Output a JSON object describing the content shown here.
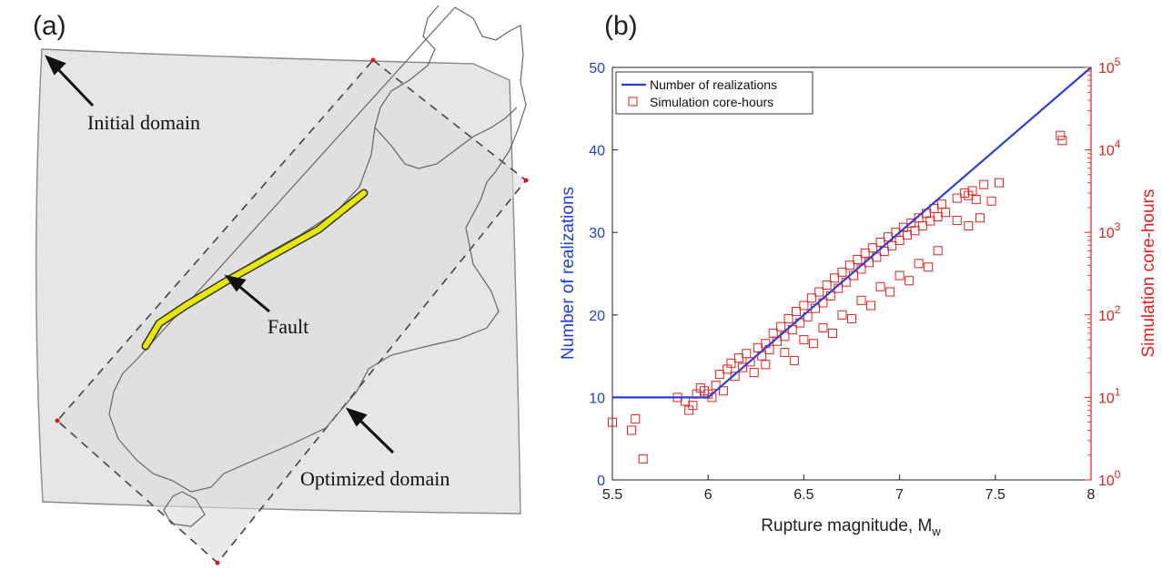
{
  "panel_a": {
    "label": "(a)",
    "annotations": {
      "initial_domain": "Initial domain",
      "fault": "Fault",
      "optimized_domain": "Optimized domain"
    },
    "colors": {
      "domain_fill": "#e6e6e6",
      "fault": "#e8e800",
      "coast": "#666666"
    }
  },
  "panel_b": {
    "label": "(b)",
    "colors": {
      "left_axis": "#1f3fe0",
      "right_axis": "#e8201c",
      "line": "#2b3fd8",
      "markers": "#e8201c"
    }
  },
  "chart_data": {
    "type": "line",
    "xlabel": "Rupture magnitude, M",
    "xlabel_subscript": "w",
    "ylabel": "Number of realizations",
    "ylabel_right": "Simulation core-hours",
    "xlim": [
      5.5,
      8
    ],
    "ylim": [
      0,
      50
    ],
    "ylim_right": [
      1,
      100000
    ],
    "y_right_scale": "log",
    "x_ticks": [
      "5.5",
      "6",
      "6.5",
      "7",
      "7.5",
      "8"
    ],
    "y_ticks": [
      "0",
      "10",
      "20",
      "30",
      "40",
      "50"
    ],
    "y_right_ticks": [
      {
        "base": "10",
        "exp": "0"
      },
      {
        "base": "10",
        "exp": "1"
      },
      {
        "base": "10",
        "exp": "2"
      },
      {
        "base": "10",
        "exp": "3"
      },
      {
        "base": "10",
        "exp": "4"
      },
      {
        "base": "10",
        "exp": "5"
      }
    ],
    "legend_position": "top-left",
    "series": [
      {
        "name": "Number of realizations",
        "type": "line",
        "x": [
          5.5,
          6.0,
          8.0
        ],
        "y": [
          10,
          10,
          50
        ]
      },
      {
        "name": "Simulation core-hours",
        "type": "scatter",
        "axis": "right",
        "points": [
          [
            5.5,
            5
          ],
          [
            5.6,
            4
          ],
          [
            5.62,
            5.5
          ],
          [
            5.66,
            1.8
          ],
          [
            5.84,
            10
          ],
          [
            5.88,
            9
          ],
          [
            5.9,
            7
          ],
          [
            5.92,
            8
          ],
          [
            5.94,
            11
          ],
          [
            5.96,
            13
          ],
          [
            5.98,
            12
          ],
          [
            6.0,
            11
          ],
          [
            6.02,
            10
          ],
          [
            6.04,
            14
          ],
          [
            6.06,
            19
          ],
          [
            6.08,
            12
          ],
          [
            6.1,
            22
          ],
          [
            6.12,
            26
          ],
          [
            6.14,
            18
          ],
          [
            6.16,
            30
          ],
          [
            6.18,
            23
          ],
          [
            6.2,
            34
          ],
          [
            6.22,
            27
          ],
          [
            6.24,
            20
          ],
          [
            6.26,
            40
          ],
          [
            6.28,
            32
          ],
          [
            6.3,
            45
          ],
          [
            6.32,
            38
          ],
          [
            6.34,
            60
          ],
          [
            6.36,
            48
          ],
          [
            6.38,
            72
          ],
          [
            6.4,
            55
          ],
          [
            6.42,
            90
          ],
          [
            6.44,
            66
          ],
          [
            6.46,
            110
          ],
          [
            6.48,
            80
          ],
          [
            6.5,
            130
          ],
          [
            6.52,
            95
          ],
          [
            6.54,
            160
          ],
          [
            6.56,
            120
          ],
          [
            6.58,
            190
          ],
          [
            6.6,
            140
          ],
          [
            6.62,
            230
          ],
          [
            6.64,
            170
          ],
          [
            6.66,
            280
          ],
          [
            6.68,
            210
          ],
          [
            6.7,
            330
          ],
          [
            6.72,
            250
          ],
          [
            6.74,
            400
          ],
          [
            6.76,
            300
          ],
          [
            6.78,
            470
          ],
          [
            6.8,
            360
          ],
          [
            6.82,
            560
          ],
          [
            6.84,
            430
          ],
          [
            6.86,
            650
          ],
          [
            6.88,
            500
          ],
          [
            6.9,
            760
          ],
          [
            6.92,
            590
          ],
          [
            6.94,
            880
          ],
          [
            6.96,
            690
          ],
          [
            6.98,
            1000
          ],
          [
            7.0,
            800
          ],
          [
            7.02,
            1150
          ],
          [
            7.04,
            930
          ],
          [
            7.06,
            1300
          ],
          [
            7.08,
            1050
          ],
          [
            7.1,
            1500
          ],
          [
            7.12,
            1200
          ],
          [
            7.14,
            1700
          ],
          [
            7.16,
            1380
          ],
          [
            7.18,
            1950
          ],
          [
            7.2,
            1550
          ],
          [
            7.22,
            2200
          ],
          [
            7.24,
            1750
          ],
          [
            6.3,
            25
          ],
          [
            6.4,
            35
          ],
          [
            6.5,
            50
          ],
          [
            6.6,
            70
          ],
          [
            6.7,
            100
          ],
          [
            6.8,
            150
          ],
          [
            6.9,
            220
          ],
          [
            7.0,
            300
          ],
          [
            7.1,
            420
          ],
          [
            7.2,
            600
          ],
          [
            6.45,
            28
          ],
          [
            6.55,
            45
          ],
          [
            6.65,
            60
          ],
          [
            6.75,
            90
          ],
          [
            6.85,
            130
          ],
          [
            6.95,
            190
          ],
          [
            7.05,
            260
          ],
          [
            7.15,
            380
          ],
          [
            7.3,
            2600
          ],
          [
            7.34,
            3000
          ],
          [
            7.36,
            1200
          ],
          [
            7.38,
            3200
          ],
          [
            7.4,
            2500
          ],
          [
            7.42,
            1500
          ],
          [
            7.44,
            3800
          ],
          [
            7.48,
            2400
          ],
          [
            7.52,
            4000
          ],
          [
            7.36,
            2800
          ],
          [
            7.3,
            1400
          ],
          [
            7.84,
            15000
          ],
          [
            7.85,
            13000
          ]
        ]
      }
    ]
  }
}
